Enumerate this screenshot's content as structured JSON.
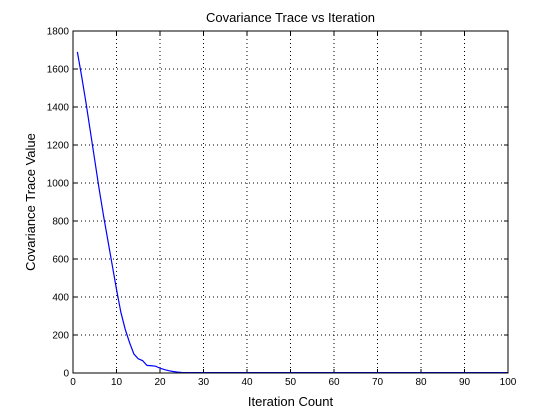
{
  "chart_data": {
    "type": "line",
    "title": "Covariance Trace vs Iteration",
    "xlabel": "Iteration Count",
    "ylabel": "Covariance Trace Value",
    "xlim": [
      0,
      100
    ],
    "ylim": [
      0,
      1800
    ],
    "xticks": [
      0,
      10,
      20,
      30,
      40,
      50,
      60,
      70,
      80,
      90,
      100
    ],
    "yticks": [
      0,
      200,
      400,
      600,
      800,
      1000,
      1200,
      1400,
      1600,
      1800
    ],
    "grid": true,
    "series": [
      {
        "color": "#0000ff",
        "x": [
          1,
          2,
          3,
          4,
          5,
          6,
          7,
          8,
          9,
          10,
          11,
          12,
          13,
          14,
          15,
          16,
          17,
          18,
          19,
          20,
          21,
          22,
          23,
          24,
          25,
          26,
          30,
          40,
          50,
          60,
          70,
          80,
          90,
          100
        ],
        "y": [
          1690,
          1560,
          1420,
          1270,
          1120,
          970,
          830,
          700,
          570,
          440,
          320,
          230,
          160,
          100,
          75,
          65,
          40,
          38,
          36,
          25,
          18,
          12,
          8,
          5,
          3,
          2,
          2,
          2,
          2,
          2,
          2,
          2,
          2,
          2
        ]
      }
    ]
  }
}
